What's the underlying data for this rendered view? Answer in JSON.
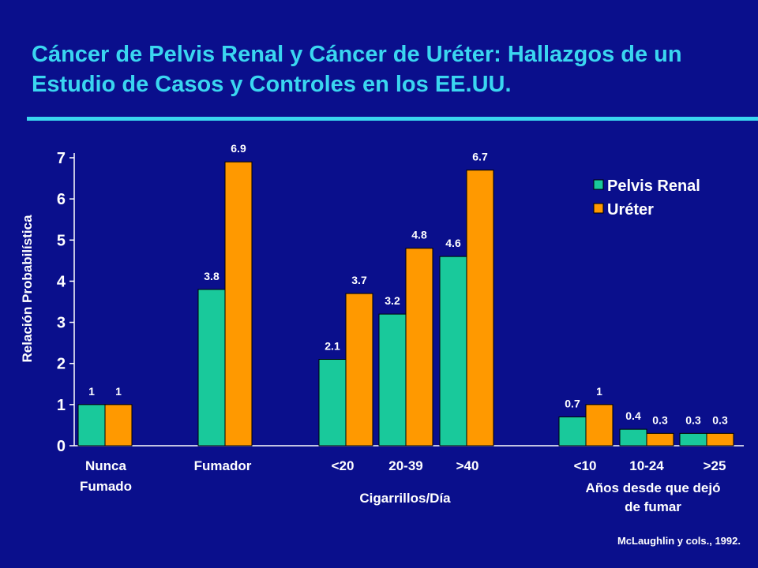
{
  "title": "Cáncer de Pelvis Renal y Cáncer de Uréter: Hallazgos de un Estudio de Casos y Controles en los EE.UU.",
  "citation": "McLaughlin y cols., 1992.",
  "colors": {
    "background": "#0a0f8c",
    "title": "#3ad6f0",
    "pelvis": "#19c99b",
    "ureter": "#ff9900",
    "text": "#ffffff"
  },
  "chart_data": {
    "type": "bar",
    "ylabel": "Relación Probabilística",
    "ylim": [
      0,
      7
    ],
    "yticks": [
      "0",
      "1",
      "2",
      "3",
      "4",
      "5",
      "6",
      "7"
    ],
    "grid": false,
    "legend_position": "top-right",
    "categories": [
      [
        "Nunca",
        "Fumado"
      ],
      [
        "Fumador"
      ],
      [
        "<20"
      ],
      [
        "20-39"
      ],
      [
        ">40"
      ],
      [
        "<10"
      ],
      [
        "10-24"
      ],
      [
        ">25"
      ]
    ],
    "group_labels": [
      [
        "Cigarrillos/Día"
      ],
      [
        "Años desde que dejó",
        "de fumar"
      ]
    ],
    "series": [
      {
        "name": "Pelvis Renal",
        "values": [
          1,
          3.8,
          2.1,
          3.2,
          4.6,
          0.7,
          0.4,
          0.3
        ],
        "labels": [
          "1",
          "3.8",
          "2.1",
          "3.2",
          "4.6",
          "0.7",
          "0.4",
          "0.3"
        ]
      },
      {
        "name": "Uréter",
        "values": [
          1,
          6.9,
          3.7,
          4.8,
          6.7,
          1,
          0.3,
          0.3
        ],
        "labels": [
          "1",
          "6.9",
          "3.7",
          "4.8",
          "6.7",
          "1",
          "0.3",
          "0.3"
        ]
      }
    ]
  }
}
